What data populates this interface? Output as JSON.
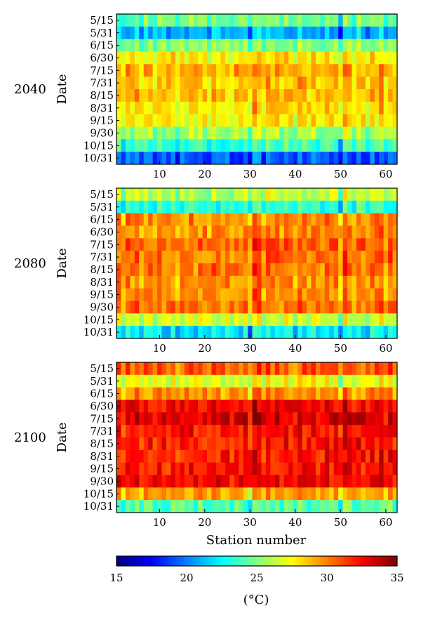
{
  "chart_data": {
    "type": "heatmap",
    "xlabel": "Station number",
    "ylabel": "Date",
    "x_range": [
      1,
      62
    ],
    "x_ticks": [
      10,
      20,
      30,
      40,
      50,
      60
    ],
    "dates": [
      "5/15",
      "5/31",
      "6/15",
      "6/30",
      "7/15",
      "7/31",
      "8/15",
      "8/31",
      "9/15",
      "9/30",
      "10/15",
      "10/31"
    ],
    "colorbar": {
      "min": 15,
      "max": 35,
      "ticks": [
        15,
        20,
        25,
        30,
        35
      ],
      "label": "(°C)",
      "colormap": "jet",
      "colors": [
        "#00007f",
        "#0000ff",
        "#007fff",
        "#00ffff",
        "#7fff7f",
        "#ffff00",
        "#ff7f00",
        "#ff0000",
        "#7f0000"
      ]
    },
    "cool_stations": [
      30,
      50
    ],
    "panels": [
      {
        "year": "2040",
        "date_means": [
          24.5,
          21.0,
          25.0,
          27.5,
          29.0,
          28.5,
          28.5,
          28.0,
          27.5,
          25.5,
          23.5,
          19.0
        ],
        "station_offsets": [
          0.3,
          -0.8,
          0.5,
          0.0,
          0.8,
          -0.6,
          0.4,
          0.2,
          -0.4,
          0.6,
          0.1,
          -0.2,
          0.5,
          -0.7,
          0.3,
          0.0,
          0.7,
          -0.3,
          0.4,
          0.1,
          -0.5,
          0.6,
          0.2,
          -0.1,
          0.3,
          -0.4,
          0.5,
          0.0,
          0.4,
          -2.2,
          1.5,
          0.8,
          -0.5,
          0.9,
          0.2,
          0.6,
          -0.3,
          0.7,
          0.1,
          -0.6,
          0.8,
          0.3,
          -0.2,
          0.5,
          0.0,
          -0.4,
          0.6,
          0.2,
          0.3,
          -2.5,
          1.2,
          0.5,
          -0.3,
          0.9,
          0.1,
          -0.7,
          0.6,
          0.2,
          1.1,
          -0.4,
          0.8,
          0.0
        ]
      },
      {
        "year": "2080",
        "date_means": [
          26.0,
          23.0,
          29.5,
          29.5,
          30.5,
          30.0,
          30.0,
          29.5,
          29.5,
          30.0,
          26.5,
          22.0
        ],
        "station_offsets": [
          0.4,
          -0.9,
          0.6,
          0.1,
          0.9,
          -0.5,
          0.3,
          0.2,
          -0.3,
          0.7,
          0.0,
          -0.1,
          0.6,
          -0.6,
          0.4,
          0.1,
          0.8,
          -0.2,
          0.3,
          0.2,
          -0.4,
          0.7,
          0.1,
          0.0,
          0.4,
          -0.3,
          0.6,
          0.1,
          0.5,
          -2.0,
          1.6,
          0.9,
          -0.4,
          1.0,
          0.3,
          0.7,
          -0.2,
          0.8,
          0.2,
          -0.5,
          0.9,
          0.4,
          -0.1,
          0.6,
          0.1,
          -0.3,
          0.7,
          0.3,
          0.4,
          -2.3,
          1.3,
          0.6,
          -0.2,
          1.0,
          0.2,
          -0.6,
          0.7,
          0.3,
          1.2,
          -0.3,
          0.9,
          0.1
        ]
      },
      {
        "year": "2100",
        "date_means": [
          30.5,
          27.0,
          29.5,
          32.5,
          33.0,
          32.0,
          32.0,
          32.0,
          32.0,
          32.5,
          29.0,
          24.0
        ],
        "station_offsets": [
          0.2,
          -0.7,
          0.4,
          0.0,
          0.7,
          -0.4,
          0.3,
          0.1,
          -0.3,
          0.5,
          0.0,
          -0.2,
          0.4,
          -0.5,
          0.3,
          0.0,
          0.6,
          -0.2,
          0.3,
          0.1,
          -0.4,
          0.5,
          0.1,
          -0.1,
          0.3,
          -0.3,
          0.4,
          0.0,
          0.3,
          -1.8,
          1.2,
          0.7,
          -0.4,
          0.8,
          0.2,
          0.5,
          -0.2,
          0.6,
          0.1,
          -0.4,
          0.7,
          0.3,
          -0.1,
          0.4,
          0.0,
          -0.3,
          0.5,
          0.2,
          0.3,
          -2.0,
          1.0,
          0.4,
          -0.2,
          0.8,
          0.1,
          -0.5,
          0.5,
          0.2,
          0.9,
          -0.3,
          0.7,
          0.0
        ]
      }
    ]
  }
}
